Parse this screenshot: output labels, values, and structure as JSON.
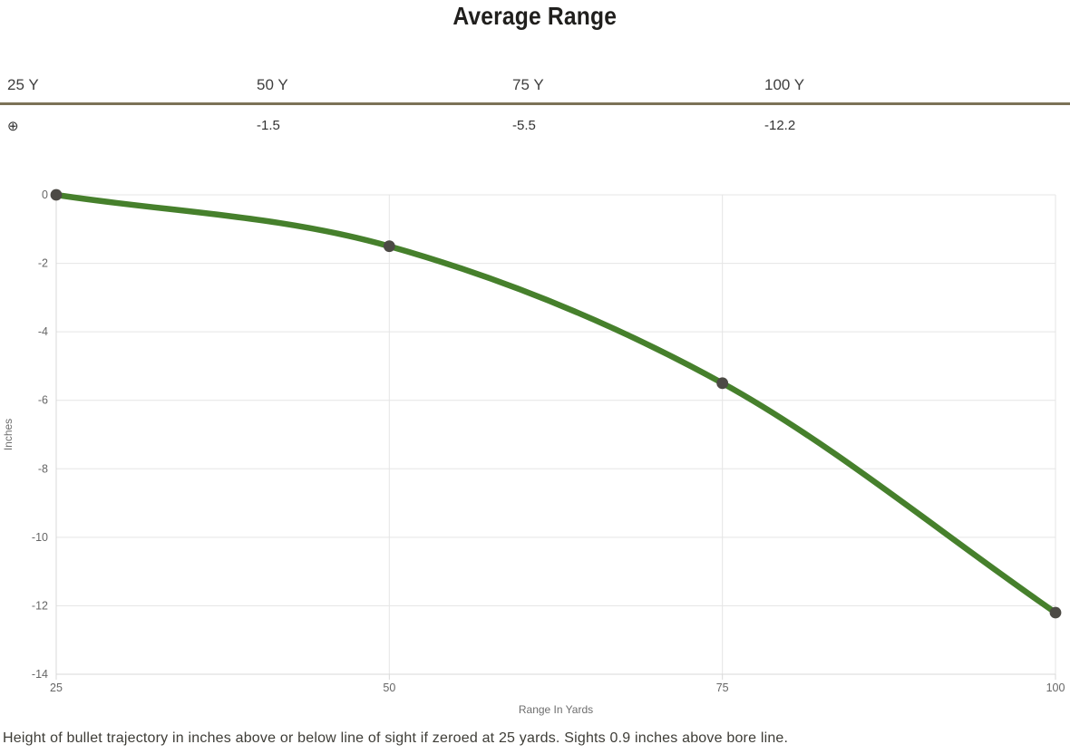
{
  "title": "Average Range",
  "range_table": {
    "headers": [
      "25 Y",
      "50 Y",
      "75 Y",
      "100 Y"
    ],
    "values": [
      "⊕",
      "-1.5",
      "-5.5",
      "-12.2"
    ],
    "zero_symbol_name": "circled-plus-zero-marker",
    "header_rule_color": "#7c7257"
  },
  "chart_data": {
    "type": "line",
    "x": [
      25,
      50,
      75,
      100
    ],
    "series": [
      {
        "name": "Average Range",
        "values": [
          0,
          -1.5,
          -5.5,
          -12.2
        ]
      }
    ],
    "xlabel": "Range In Yards",
    "ylabel": "Inches",
    "xlim": [
      25,
      100
    ],
    "ylim": [
      -14,
      0
    ],
    "x_ticks": [
      25,
      50,
      75,
      100
    ],
    "y_ticks": [
      0,
      -2,
      -4,
      -6,
      -8,
      -10,
      -12,
      -14
    ],
    "grid": true,
    "legend": "none",
    "curve": "monotone",
    "line_color": "#46802c",
    "point_color": "#4c4a45",
    "grid_color": "#e5e5e5",
    "axis_color": "#d9d9d9",
    "tick_label_color": "#666666",
    "axis_title_color": "#6e6e6e"
  },
  "caption": "Height of bullet trajectory in inches above or below line of sight if zeroed at 25 yards. Sights 0.9 inches above bore line."
}
